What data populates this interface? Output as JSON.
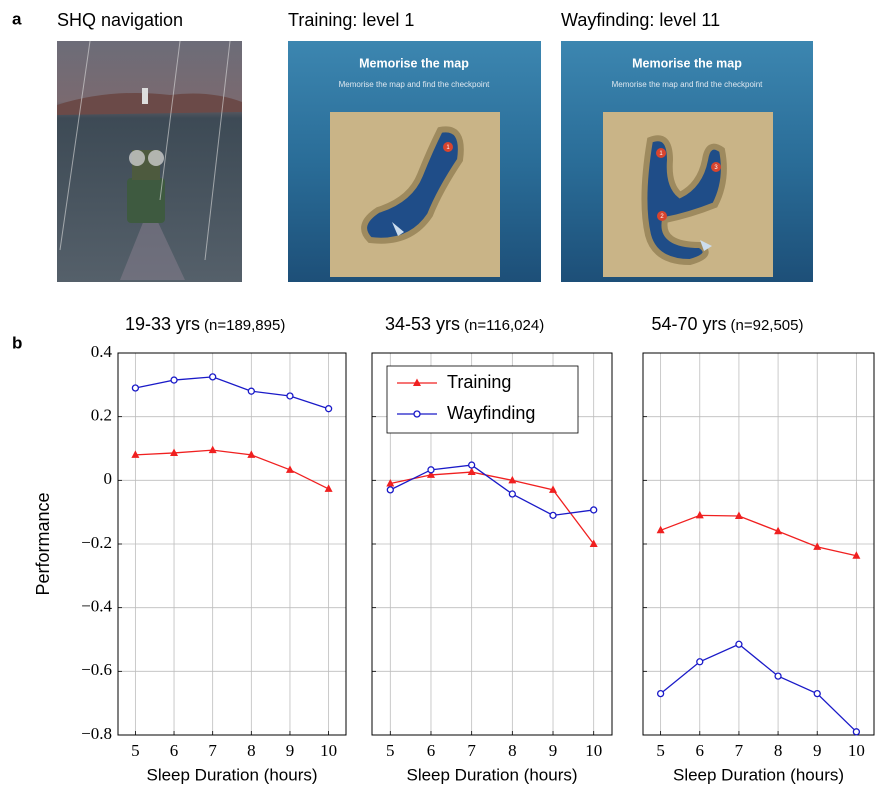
{
  "panel_labels": [
    "a",
    "b"
  ],
  "screens": [
    {
      "title": "SHQ navigation"
    },
    {
      "title": "Training: level 1",
      "heading": "Memorise the map",
      "text": "Memorise the map and find the checkpoint",
      "checkpoints": [
        "1"
      ]
    },
    {
      "title": "Wayfinding: level 11",
      "heading": "Memorise the map",
      "text": "Memorise the map and find the checkpoint",
      "checkpoints": [
        "1",
        "2",
        "3"
      ]
    }
  ],
  "chart_data": [
    {
      "type": "line",
      "title": "19-33 yrs",
      "subtitle": "(n=189,895)",
      "xlabel": "Sleep Duration (hours)",
      "ylabel": "Performance",
      "x": [
        5,
        6,
        7,
        8,
        9,
        10
      ],
      "xlim": [
        4.55,
        10.45
      ],
      "xticks": [
        5,
        6,
        7,
        8,
        9,
        10
      ],
      "ylim": [
        -0.8,
        0.4
      ],
      "yticks": [
        {
          "value": -0.8,
          "label": "−0.8"
        },
        {
          "value": -0.6,
          "label": "−0.6"
        },
        {
          "value": -0.4,
          "label": "−0.4"
        },
        {
          "value": -0.2,
          "label": "−0.2"
        },
        0,
        0.2,
        0.4
      ],
      "show_ytick_labels": true,
      "grid": true,
      "series": [
        {
          "name": "Training",
          "color": "#f02020",
          "marker": "triangle",
          "values": [
            0.08,
            0.086,
            0.095,
            0.08,
            0.033,
            -0.027
          ]
        },
        {
          "name": "Wayfinding",
          "color": "#1a1ac8",
          "marker": "circle",
          "values": [
            0.29,
            0.315,
            0.325,
            0.28,
            0.265,
            0.225
          ]
        }
      ]
    },
    {
      "type": "line",
      "title": "34-53 yrs",
      "subtitle": "(n=116,024)",
      "xlabel": "Sleep Duration (hours)",
      "x": [
        5,
        6,
        7,
        8,
        9,
        10
      ],
      "xlim": [
        4.55,
        10.45
      ],
      "xticks": [
        5,
        6,
        7,
        8,
        9,
        10
      ],
      "ylim": [
        -0.8,
        0.4
      ],
      "yticks": [
        -0.8,
        -0.6,
        -0.4,
        -0.2,
        0,
        0.2,
        0.4
      ],
      "show_ytick_labels": false,
      "grid": true,
      "legend": "upper left",
      "series": [
        {
          "name": "Training",
          "color": "#f02020",
          "marker": "triangle",
          "values": [
            -0.01,
            0.017,
            0.026,
            0.0,
            -0.03,
            -0.2
          ]
        },
        {
          "name": "Wayfinding",
          "color": "#1a1ac8",
          "marker": "circle",
          "values": [
            -0.03,
            0.033,
            0.048,
            -0.043,
            -0.11,
            -0.093
          ]
        }
      ]
    },
    {
      "type": "line",
      "title": "54-70 yrs",
      "subtitle": "(n=92,505)",
      "xlabel": "Sleep Duration (hours)",
      "x": [
        5,
        6,
        7,
        8,
        9,
        10
      ],
      "xlim": [
        4.55,
        10.45
      ],
      "xticks": [
        5,
        6,
        7,
        8,
        9,
        10
      ],
      "ylim": [
        -0.8,
        0.4
      ],
      "yticks": [
        -0.8,
        -0.6,
        -0.4,
        -0.2,
        0,
        0.2,
        0.4
      ],
      "show_ytick_labels": false,
      "grid": true,
      "series": [
        {
          "name": "Training",
          "color": "#f02020",
          "marker": "triangle",
          "values": [
            -0.157,
            -0.11,
            -0.112,
            -0.16,
            -0.209,
            -0.237
          ]
        },
        {
          "name": "Wayfinding",
          "color": "#1a1ac8",
          "marker": "circle",
          "values": [
            -0.67,
            -0.57,
            -0.515,
            -0.615,
            -0.67,
            -0.79
          ]
        }
      ]
    }
  ]
}
